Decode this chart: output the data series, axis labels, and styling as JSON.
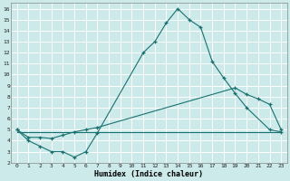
{
  "xlabel": "Humidex (Indice chaleur)",
  "bg_color": "#cceaea",
  "grid_color": "#ffffff",
  "line_color": "#1a7070",
  "xlim": [
    -0.5,
    23.5
  ],
  "ylim": [
    2,
    16.5
  ],
  "xticks": [
    0,
    1,
    2,
    3,
    4,
    5,
    6,
    7,
    8,
    9,
    10,
    11,
    12,
    13,
    14,
    15,
    16,
    17,
    18,
    19,
    20,
    21,
    22,
    23
  ],
  "yticks": [
    2,
    3,
    4,
    5,
    6,
    7,
    8,
    9,
    10,
    11,
    12,
    13,
    14,
    15,
    16
  ],
  "line1_x": [
    0,
    1,
    2,
    3,
    4,
    5,
    6,
    7,
    11,
    12,
    13,
    14,
    15,
    16,
    17,
    18,
    19,
    20,
    22,
    23
  ],
  "line1_y": [
    5,
    4,
    3.5,
    3,
    3,
    2.5,
    3,
    4.7,
    12,
    13,
    14.7,
    16,
    15,
    14.3,
    11.2,
    9.7,
    8.3,
    7.0,
    5.0,
    4.8
  ],
  "line2_x": [
    0,
    1,
    2,
    3,
    4,
    5,
    6,
    7,
    19,
    20,
    21,
    22,
    23
  ],
  "line2_y": [
    5,
    4.3,
    4.3,
    4.2,
    4.5,
    4.8,
    5.0,
    5.2,
    8.8,
    8.2,
    7.8,
    7.3,
    5.0
  ],
  "line3_x": [
    0,
    7,
    23
  ],
  "line3_y": [
    4.8,
    4.8,
    4.8
  ]
}
